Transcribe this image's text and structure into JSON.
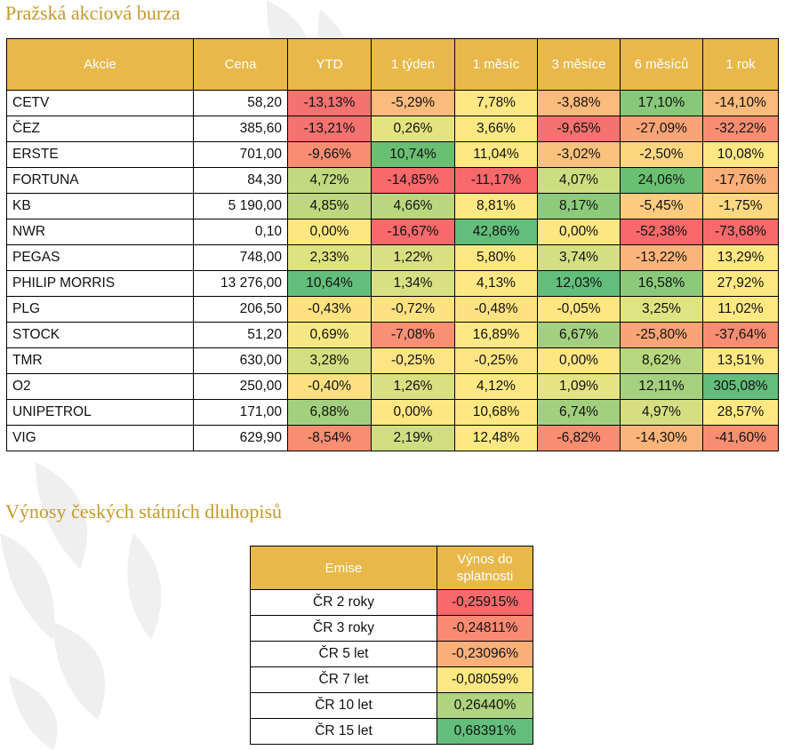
{
  "titles": {
    "stocks": "Pražská akciová burza",
    "bonds": "Výnosy českých státních dluhopisů"
  },
  "stocks_table": {
    "headers": [
      "Akcie",
      "Cena",
      "YTD",
      "1 týden",
      "1 měsíc",
      "3 měsíce",
      "6 měsíců",
      "1 rok"
    ],
    "rows": [
      {
        "name": "CETV",
        "price": "58,20",
        "values": [
          "-13,13%",
          "-5,29%",
          "7,78%",
          "-3,88%",
          "17,10%",
          "-14,10%"
        ],
        "colors": [
          "#f4726f",
          "#fbbb7c",
          "#fde883",
          "#fbbb7c",
          "#88c87a",
          "#fbbb7c"
        ]
      },
      {
        "name": "ČEZ",
        "price": "385,60",
        "values": [
          "-13,21%",
          "0,26%",
          "3,66%",
          "-9,65%",
          "-27,09%",
          "-32,22%"
        ],
        "colors": [
          "#f4726f",
          "#e4e382",
          "#fde883",
          "#f4726f",
          "#f9a476",
          "#f98d72"
        ]
      },
      {
        "name": "ERSTE",
        "price": "701,00",
        "values": [
          "-9,66%",
          "10,74%",
          "11,04%",
          "-3,02%",
          "-2,50%",
          "10,08%"
        ],
        "colors": [
          "#f98d72",
          "#6bbf72",
          "#fde883",
          "#fbc17e",
          "#fed680",
          "#fde883"
        ]
      },
      {
        "name": "FORTUNA",
        "price": "84,30",
        "values": [
          "4,72%",
          "-14,85%",
          "-11,17%",
          "4,07%",
          "24,06%",
          "-17,76%"
        ],
        "colors": [
          "#c1d980",
          "#f8696b",
          "#f8696b",
          "#cddd81",
          "#6bbf72",
          "#fbb07a"
        ]
      },
      {
        "name": "KB",
        "price": "5 190,00",
        "values": [
          "4,85%",
          "4,66%",
          "8,81%",
          "8,17%",
          "-5,45%",
          "-1,75%"
        ],
        "colors": [
          "#bfd880",
          "#bad77f",
          "#fde883",
          "#8ccb7c",
          "#fdcc7f",
          "#fed981"
        ]
      },
      {
        "name": "NWR",
        "price": "0,10",
        "values": [
          "0,00%",
          "-16,67%",
          "42,86%",
          "0,00%",
          "-52,38%",
          "-73,68%"
        ],
        "colors": [
          "#fee683",
          "#f8696b",
          "#63be7b",
          "#fee683",
          "#f8696b",
          "#f8696b"
        ]
      },
      {
        "name": "PEGAS",
        "price": "748,00",
        "values": [
          "2,33%",
          "1,22%",
          "5,80%",
          "3,74%",
          "-13,22%",
          "13,29%"
        ],
        "colors": [
          "#dfe282",
          "#d9e082",
          "#fde883",
          "#d3df82",
          "#fbb57b",
          "#fde883"
        ]
      },
      {
        "name": "PHILIP MORRIS",
        "price": "13 276,00",
        "values": [
          "10,64%",
          "1,34%",
          "4,13%",
          "12,03%",
          "16,58%",
          "27,92%"
        ],
        "colors": [
          "#63be7b",
          "#d7e082",
          "#fde883",
          "#63be7b",
          "#8bca7b",
          "#fde883"
        ]
      },
      {
        "name": "PLG",
        "price": "206,50",
        "values": [
          "-0,43%",
          "-0,72%",
          "-0,48%",
          "-0,05%",
          "3,25%",
          "11,02%"
        ],
        "colors": [
          "#fee282",
          "#fee282",
          "#fee282",
          "#fee683",
          "#e0e382",
          "#fde883"
        ]
      },
      {
        "name": "STOCK",
        "price": "51,20",
        "values": [
          "0,69%",
          "-7,08%",
          "16,89%",
          "6,67%",
          "-25,80%",
          "-37,64%"
        ],
        "colors": [
          "#f5e883",
          "#f99074",
          "#fde883",
          "#a3d07e",
          "#f9a476",
          "#f98d72"
        ]
      },
      {
        "name": "TMR",
        "price": "630,00",
        "values": [
          "3,28%",
          "-0,25%",
          "-0,25%",
          "0,00%",
          "8,62%",
          "13,51%"
        ],
        "colors": [
          "#d3df82",
          "#fee482",
          "#fee482",
          "#fee683",
          "#b9d780",
          "#fde883"
        ]
      },
      {
        "name": "O2",
        "price": "250,00",
        "values": [
          "-0,40%",
          "1,26%",
          "4,12%",
          "1,09%",
          "12,11%",
          "305,08%"
        ],
        "colors": [
          "#fee282",
          "#d8e082",
          "#fde883",
          "#e5e482",
          "#a5d17e",
          "#63be7b"
        ]
      },
      {
        "name": "UNIPETROL",
        "price": "171,00",
        "values": [
          "6,88%",
          "0,00%",
          "10,68%",
          "6,74%",
          "4,97%",
          "28,57%"
        ],
        "colors": [
          "#a3d07e",
          "#fee683",
          "#fde883",
          "#a2d07e",
          "#d5df82",
          "#fde883"
        ]
      },
      {
        "name": "VIG",
        "price": "629,90",
        "values": [
          "-8,54%",
          "2,19%",
          "12,48%",
          "-6,82%",
          "-14,30%",
          "-41,60%"
        ],
        "colors": [
          "#f98d72",
          "#d0de81",
          "#fde883",
          "#f98d72",
          "#fbb57b",
          "#f98d72"
        ]
      }
    ]
  },
  "bonds_table": {
    "headers": [
      "Emise",
      "Výnos do splatnosti"
    ],
    "rows": [
      {
        "emise": "ČR 2 roky",
        "yield": "-0,25915%",
        "color": "#f8696b"
      },
      {
        "emise": "ČR 3 roky",
        "yield": "-0,24811%",
        "color": "#f98a73"
      },
      {
        "emise": "ČR 5 let",
        "yield": "-0,23096%",
        "color": "#fbb07a"
      },
      {
        "emise": "ČR 7 let",
        "yield": "-0,08059%",
        "color": "#fde883"
      },
      {
        "emise": "ČR 10 let",
        "yield": "0,26440%",
        "color": "#b0d47f"
      },
      {
        "emise": "ČR 15 let",
        "yield": "0,68391%",
        "color": "#63be7b"
      }
    ]
  }
}
